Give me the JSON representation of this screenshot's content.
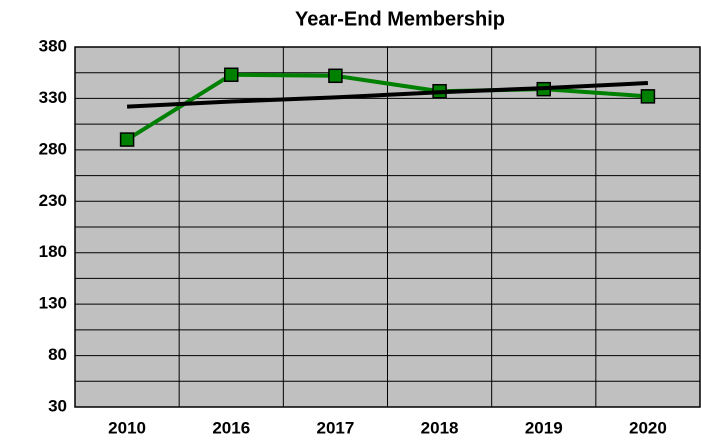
{
  "chart_data": {
    "type": "line",
    "title": "Year-End Membership",
    "categories": [
      "2010",
      "2016",
      "2017",
      "2018",
      "2019",
      "2020"
    ],
    "series": [
      {
        "color": "#008000",
        "values": [
          290,
          353,
          352,
          337,
          339,
          332
        ],
        "marker": "square"
      },
      {
        "color": "#000000",
        "values": [
          322,
          327,
          331,
          336,
          340,
          345
        ]
      }
    ],
    "ylim": [
      30,
      380
    ],
    "yticks": [
      30,
      80,
      130,
      180,
      230,
      280,
      330,
      380
    ],
    "yticks_minor": [
      55,
      105,
      155,
      205,
      255,
      305,
      355
    ],
    "grid": true,
    "background": "#c0c0c0"
  }
}
